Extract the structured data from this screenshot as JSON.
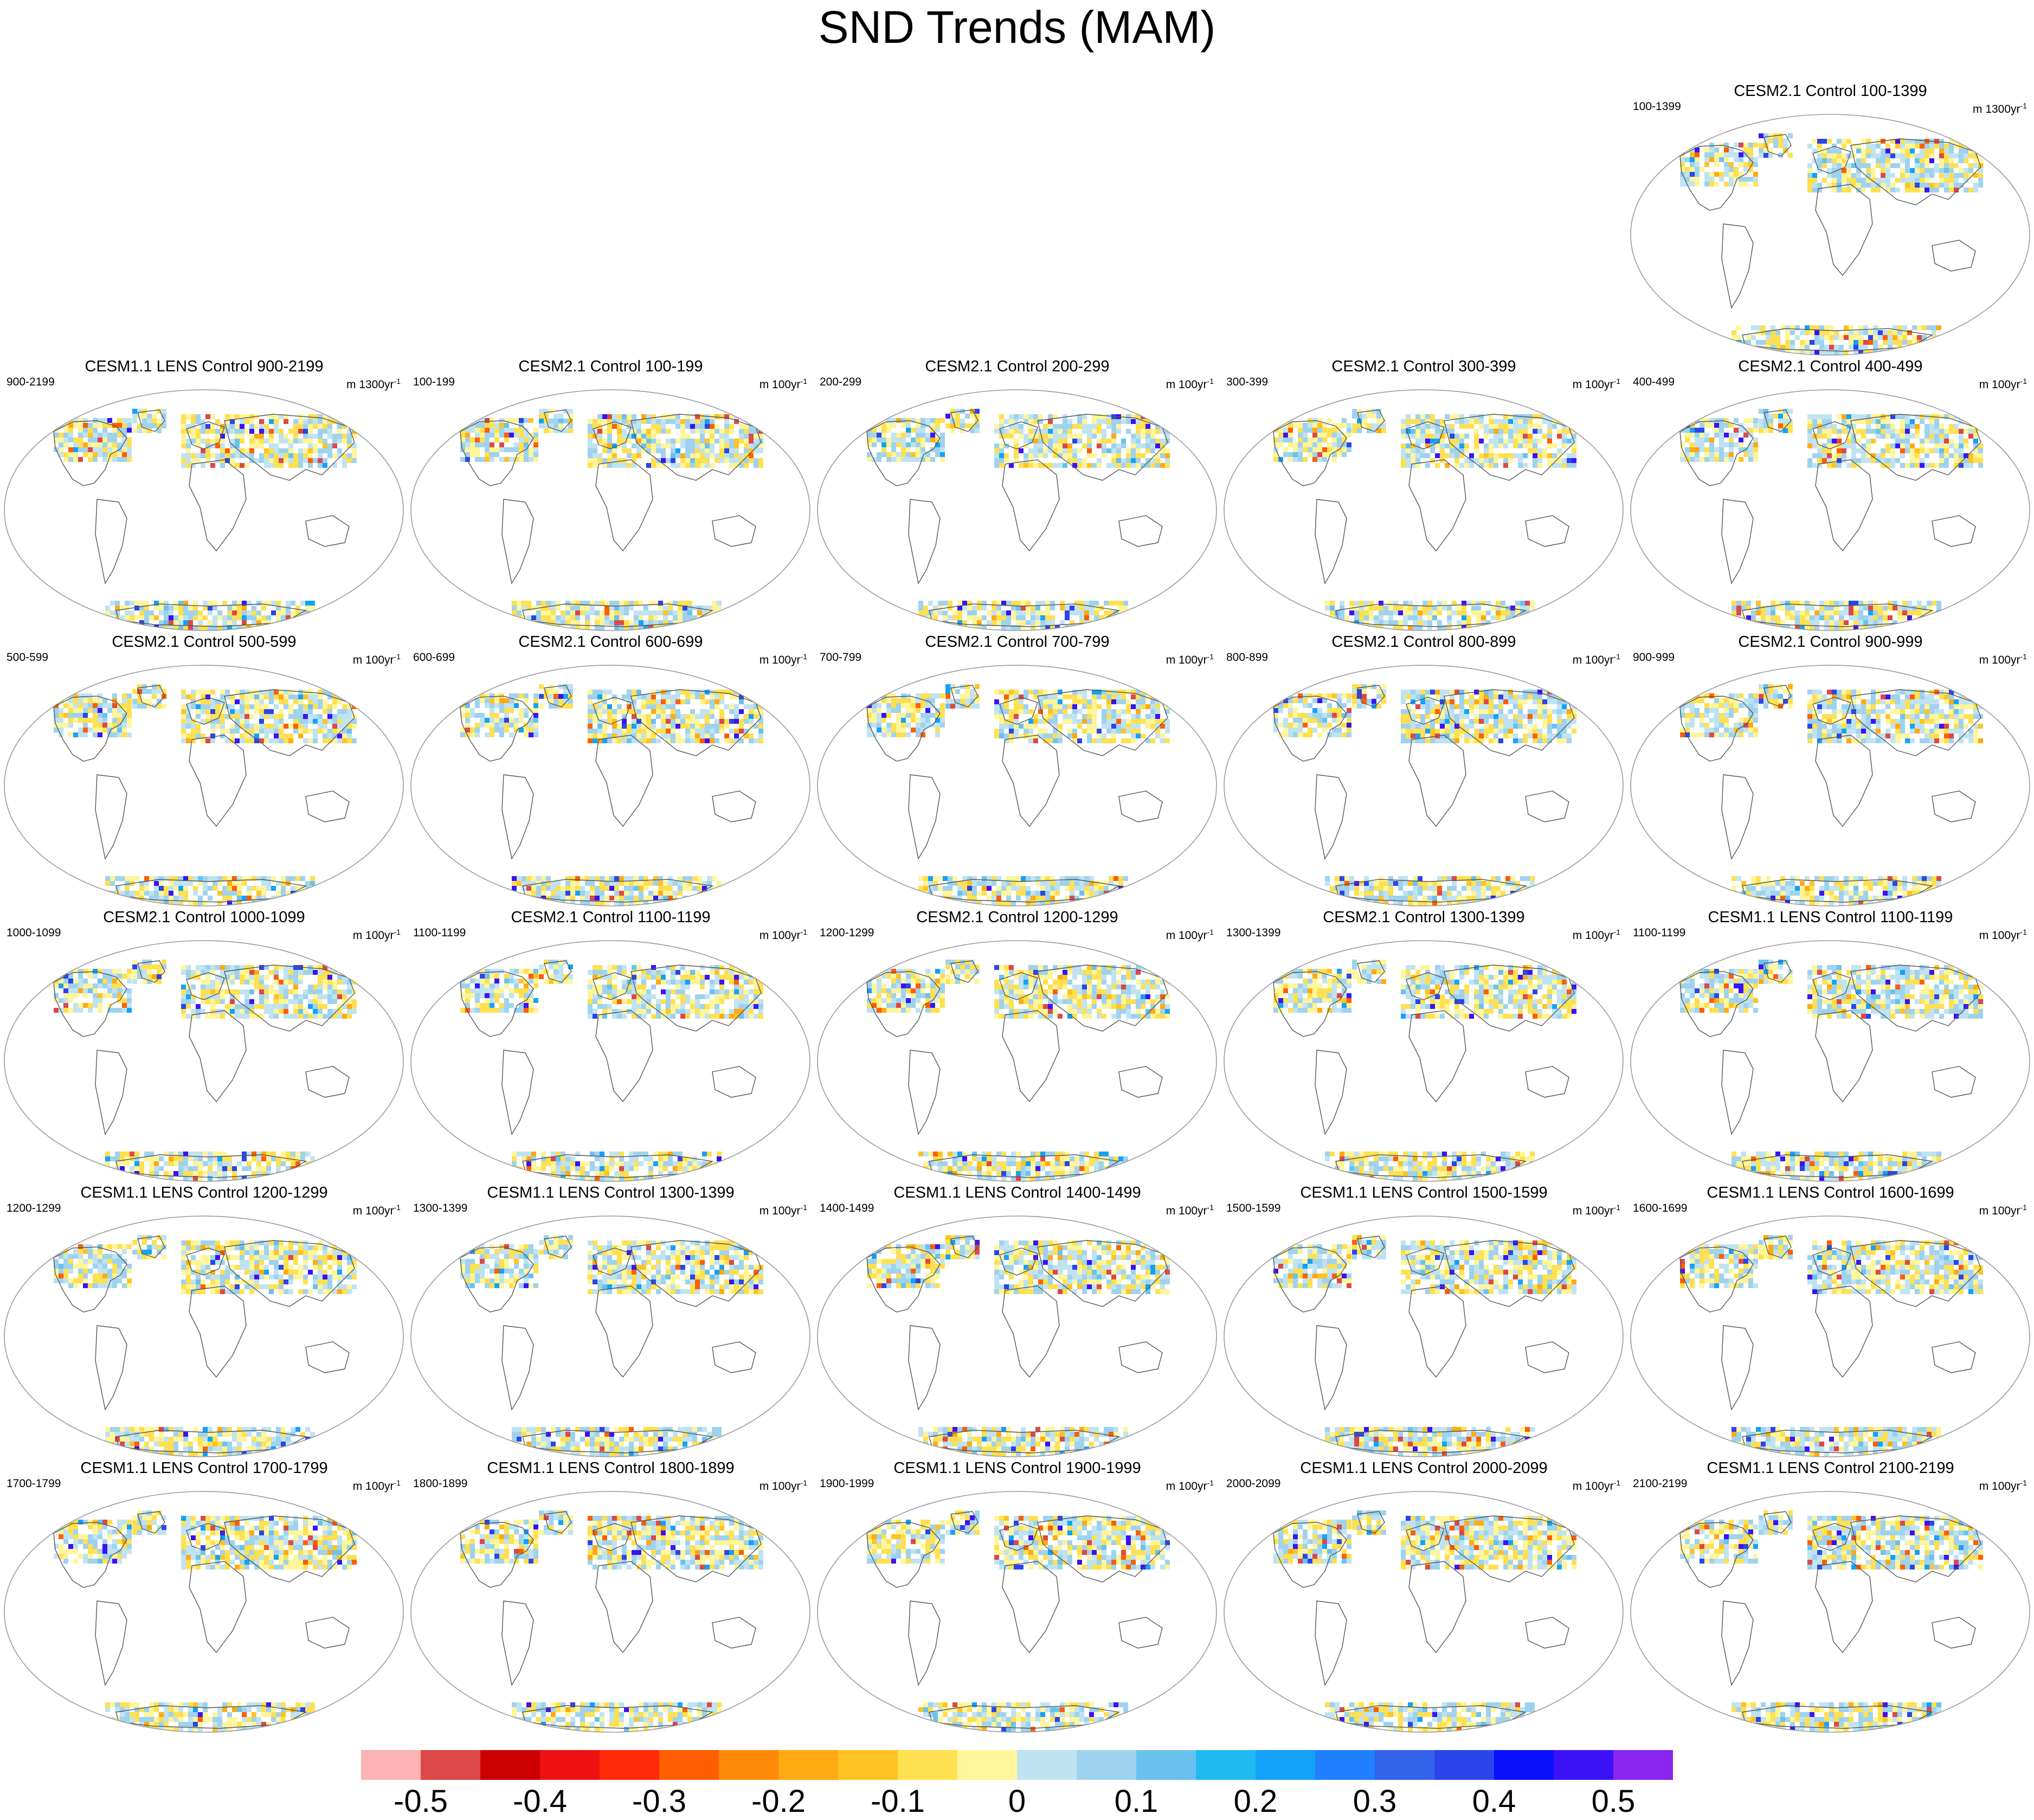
{
  "title": "SND Trends (MAM)",
  "panels": [
    {
      "title": "CESM2.1 Control 100-1399",
      "left_label": "100-1399",
      "unit_text": "m 1300yr",
      "unit_sup": "-1",
      "model": "cesm2"
    },
    {
      "title": "CESM1.1 LENS Control 900-2199",
      "left_label": "900-2199",
      "unit_text": "m 1300yr",
      "unit_sup": "-1",
      "model": "lens"
    },
    {
      "title": "CESM2.1 Control 100-199",
      "left_label": "100-199",
      "unit_text": "m 100yr",
      "unit_sup": "-1",
      "model": "cesm2"
    },
    {
      "title": "CESM2.1 Control 200-299",
      "left_label": "200-299",
      "unit_text": "m 100yr",
      "unit_sup": "-1",
      "model": "cesm2"
    },
    {
      "title": "CESM2.1 Control 300-399",
      "left_label": "300-399",
      "unit_text": "m 100yr",
      "unit_sup": "-1",
      "model": "cesm2"
    },
    {
      "title": "CESM2.1 Control 400-499",
      "left_label": "400-499",
      "unit_text": "m 100yr",
      "unit_sup": "-1",
      "model": "cesm2"
    },
    {
      "title": "CESM2.1 Control 500-599",
      "left_label": "500-599",
      "unit_text": "m 100yr",
      "unit_sup": "-1",
      "model": "cesm2"
    },
    {
      "title": "CESM2.1 Control 600-699",
      "left_label": "600-699",
      "unit_text": "m 100yr",
      "unit_sup": "-1",
      "model": "cesm2"
    },
    {
      "title": "CESM2.1 Control 700-799",
      "left_label": "700-799",
      "unit_text": "m 100yr",
      "unit_sup": "-1",
      "model": "cesm2"
    },
    {
      "title": "CESM2.1 Control 800-899",
      "left_label": "800-899",
      "unit_text": "m 100yr",
      "unit_sup": "-1",
      "model": "cesm2"
    },
    {
      "title": "CESM2.1 Control 900-999",
      "left_label": "900-999",
      "unit_text": "m 100yr",
      "unit_sup": "-1",
      "model": "cesm2"
    },
    {
      "title": "CESM2.1 Control 1000-1099",
      "left_label": "1000-1099",
      "unit_text": "m 100yr",
      "unit_sup": "-1",
      "model": "cesm2"
    },
    {
      "title": "CESM2.1 Control 1100-1199",
      "left_label": "1100-1199",
      "unit_text": "m 100yr",
      "unit_sup": "-1",
      "model": "cesm2"
    },
    {
      "title": "CESM2.1 Control 1200-1299",
      "left_label": "1200-1299",
      "unit_text": "m 100yr",
      "unit_sup": "-1",
      "model": "cesm2"
    },
    {
      "title": "CESM2.1 Control 1300-1399",
      "left_label": "1300-1399",
      "unit_text": "m 100yr",
      "unit_sup": "-1",
      "model": "cesm2"
    },
    {
      "title": "CESM1.1 LENS Control 1100-1199",
      "left_label": "1100-1199",
      "unit_text": "m 100yr",
      "unit_sup": "-1",
      "model": "lens"
    },
    {
      "title": "CESM1.1 LENS Control 1200-1299",
      "left_label": "1200-1299",
      "unit_text": "m 100yr",
      "unit_sup": "-1",
      "model": "lens"
    },
    {
      "title": "CESM1.1 LENS Control 1300-1399",
      "left_label": "1300-1399",
      "unit_text": "m 100yr",
      "unit_sup": "-1",
      "model": "lens"
    },
    {
      "title": "CESM1.1 LENS Control 1400-1499",
      "left_label": "1400-1499",
      "unit_text": "m 100yr",
      "unit_sup": "-1",
      "model": "lens"
    },
    {
      "title": "CESM1.1 LENS Control 1500-1599",
      "left_label": "1500-1599",
      "unit_text": "m 100yr",
      "unit_sup": "-1",
      "model": "lens"
    },
    {
      "title": "CESM1.1 LENS Control 1600-1699",
      "left_label": "1600-1699",
      "unit_text": "m 100yr",
      "unit_sup": "-1",
      "model": "lens"
    },
    {
      "title": "CESM1.1 LENS Control 1700-1799",
      "left_label": "1700-1799",
      "unit_text": "m 100yr",
      "unit_sup": "-1",
      "model": "lens"
    },
    {
      "title": "CESM1.1 LENS Control 1800-1899",
      "left_label": "1800-1899",
      "unit_text": "m 100yr",
      "unit_sup": "-1",
      "model": "lens"
    },
    {
      "title": "CESM1.1 LENS Control 1900-1999",
      "left_label": "1900-1999",
      "unit_text": "m 100yr",
      "unit_sup": "-1",
      "model": "lens"
    },
    {
      "title": "CESM1.1 LENS Control 2000-2099",
      "left_label": "2000-2099",
      "unit_text": "m 100yr",
      "unit_sup": "-1",
      "model": "lens"
    },
    {
      "title": "CESM1.1 LENS Control 2100-2199",
      "left_label": "2100-2199",
      "unit_text": "m 100yr",
      "unit_sup": "-1",
      "model": "lens"
    }
  ],
  "colorbar": {
    "colors": [
      "#fdb3b3",
      "#dd4848",
      "#cc0000",
      "#ee1111",
      "#ff2a0a",
      "#ff5e00",
      "#ff8a0a",
      "#ffaa11",
      "#ffc322",
      "#ffe050",
      "#fff59a",
      "#bfe3f3",
      "#9fd2ee",
      "#69c2ee",
      "#1fbaf0",
      "#14a1fa",
      "#2080ff",
      "#3363ea",
      "#2a45ea",
      "#0a10fc",
      "#3b12f6",
      "#8a25ef"
    ],
    "labels": [
      "-0.5",
      "-0.4",
      "-0.3",
      "-0.2",
      "-0.1",
      "0",
      "0.1",
      "0.2",
      "0.3",
      "0.4",
      "0.5"
    ]
  }
}
